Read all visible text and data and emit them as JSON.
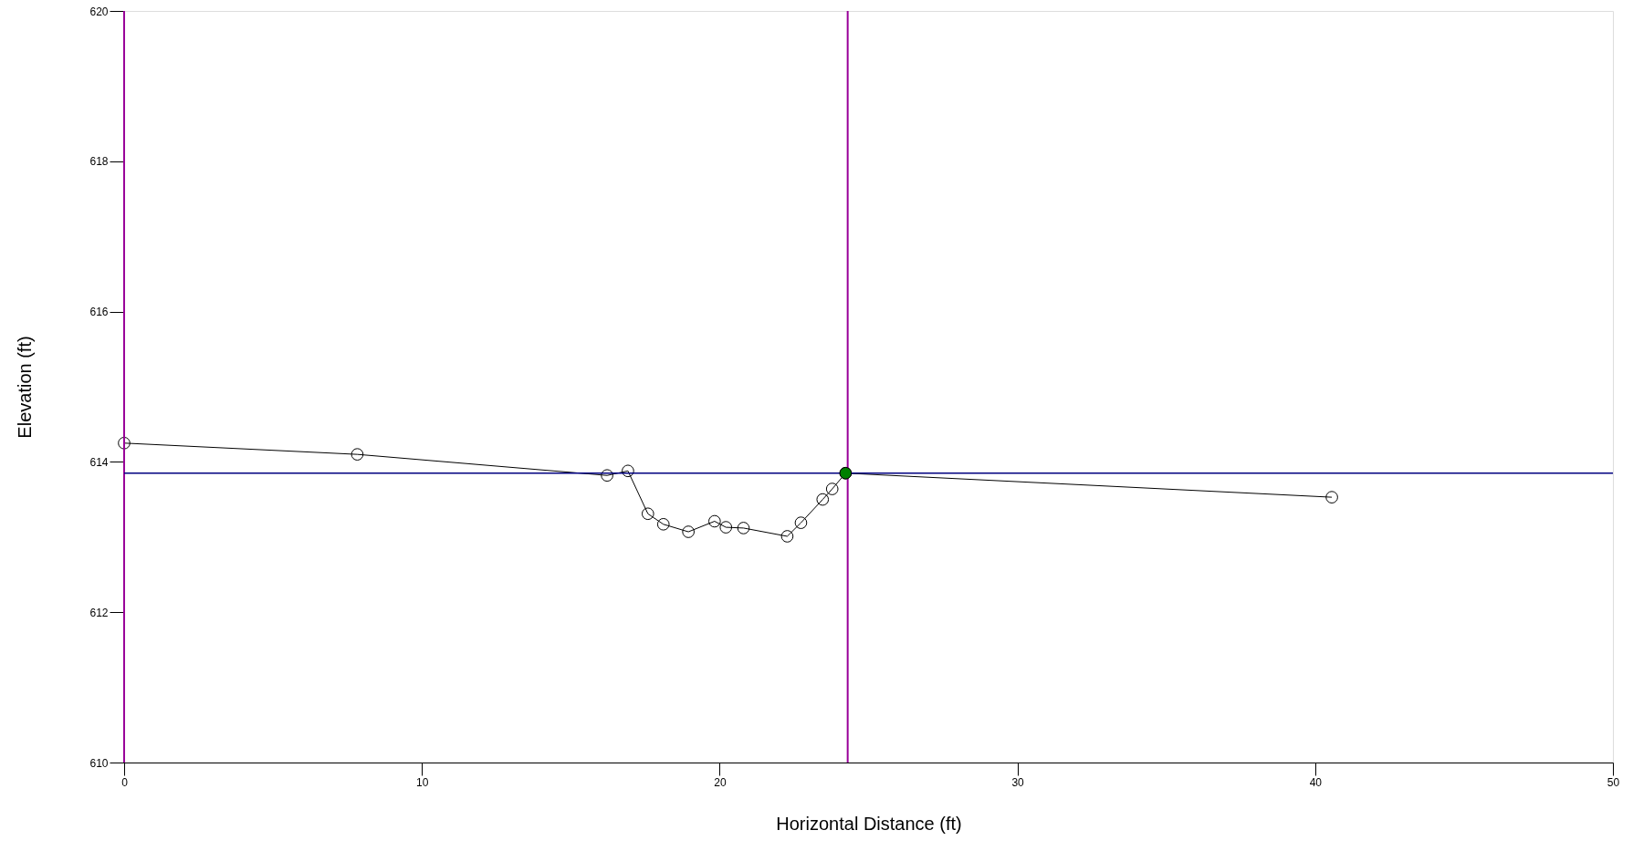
{
  "chart_data": {
    "type": "line",
    "xlabel": "Horizontal Distance (ft)",
    "ylabel": "Elevation (ft)",
    "series": [
      {
        "color": "#000000",
        "marker": "circle",
        "x": [
          0,
          7.83,
          16.22,
          16.92,
          17.59,
          18.11,
          18.95,
          19.83,
          20.21,
          20.8,
          22.27,
          22.73,
          23.46,
          23.78,
          24.23,
          40.56
        ],
        "values": [
          614.25,
          614.1,
          613.82,
          613.88,
          613.31,
          613.17,
          613.07,
          613.21,
          613.13,
          613.12,
          613.01,
          613.19,
          613.5,
          613.64,
          613.85,
          613.53
        ]
      },
      {
        "type": "scatter",
        "color": "#008000",
        "marker": "circle",
        "x": [
          24.23
        ],
        "values": [
          613.85
        ]
      }
    ],
    "ref_lines": [
      {
        "axis": "y",
        "value": 613.85,
        "color": "#000080"
      },
      {
        "axis": "x",
        "value": 0,
        "color": "#990099"
      },
      {
        "axis": "x",
        "value": 24.3,
        "color": "#990099"
      }
    ],
    "xlim": [
      0,
      50
    ],
    "xticks": [
      0,
      10,
      20,
      30,
      40,
      50
    ],
    "ylim": [
      610,
      620
    ],
    "yticks": [
      610,
      612,
      614,
      616,
      618,
      620
    ],
    "grid": false
  }
}
